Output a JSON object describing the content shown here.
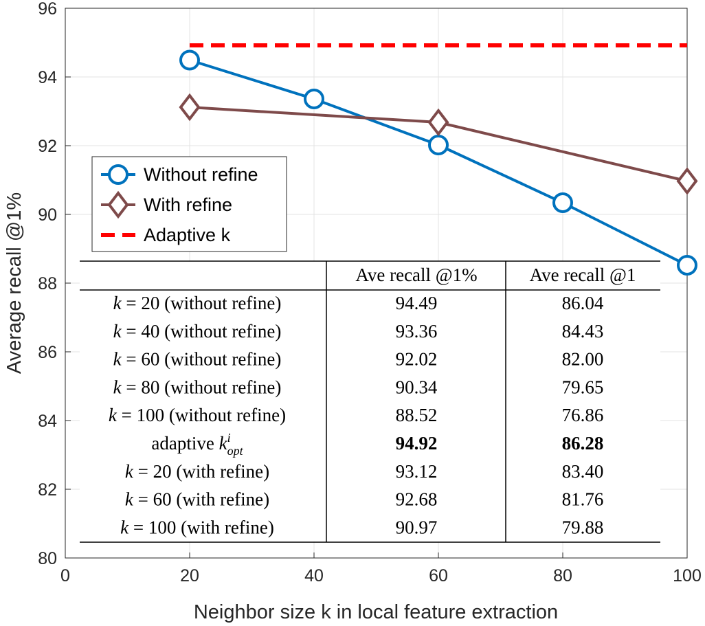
{
  "chart_data": {
    "type": "line",
    "xlabel": "Neighbor size k in local feature extraction",
    "ylabel": "Average recall @1%",
    "xlim": [
      0,
      100
    ],
    "ylim": [
      80,
      96
    ],
    "xticks": [
      0,
      20,
      40,
      60,
      80,
      100
    ],
    "yticks": [
      80,
      82,
      84,
      86,
      88,
      90,
      92,
      94,
      96
    ],
    "grid": true,
    "legend_position": "middle-left",
    "series": [
      {
        "name": "Without refine",
        "color": "#0072BD",
        "marker": "circle",
        "style": "solid",
        "x": [
          20,
          40,
          60,
          80,
          100
        ],
        "y": [
          94.49,
          93.36,
          92.02,
          90.34,
          88.52
        ]
      },
      {
        "name": "With refine",
        "color": "#7E4A4A",
        "marker": "diamond",
        "style": "solid",
        "x": [
          20,
          60,
          100
        ],
        "y": [
          93.12,
          92.68,
          90.97
        ]
      },
      {
        "name": "Adaptive k",
        "color": "#FF0000",
        "marker": "none",
        "style": "dashed",
        "x": [
          20,
          100
        ],
        "y": [
          94.92,
          94.92
        ]
      }
    ],
    "table": {
      "headers": [
        "",
        "Ave recall @1%",
        "Ave recall @1"
      ],
      "rows": [
        {
          "k": "20",
          "note": "(without refine)",
          "r1pct": "94.49",
          "r1": "86.04"
        },
        {
          "k": "40",
          "note": "(without refine)",
          "r1pct": "93.36",
          "r1": "84.43"
        },
        {
          "k": "60",
          "note": "(without refine)",
          "r1pct": "92.02",
          "r1": "82.00"
        },
        {
          "k": "80",
          "note": "(without refine)",
          "r1pct": "90.34",
          "r1": "79.65"
        },
        {
          "k": "100",
          "note": "(without refine)",
          "r1pct": "88.52",
          "r1": "76.86"
        },
        {
          "adaptive": "adaptive",
          "r1pct": "94.92",
          "r1": "86.28",
          "bold": true
        },
        {
          "k": "20",
          "note": "(with refine)",
          "r1pct": "93.12",
          "r1": "83.40"
        },
        {
          "k": "60",
          "note": "(with refine)",
          "r1pct": "92.68",
          "r1": "81.76"
        },
        {
          "k": "100",
          "note": "(with refine)",
          "r1pct": "90.97",
          "r1": "79.88"
        }
      ]
    }
  }
}
